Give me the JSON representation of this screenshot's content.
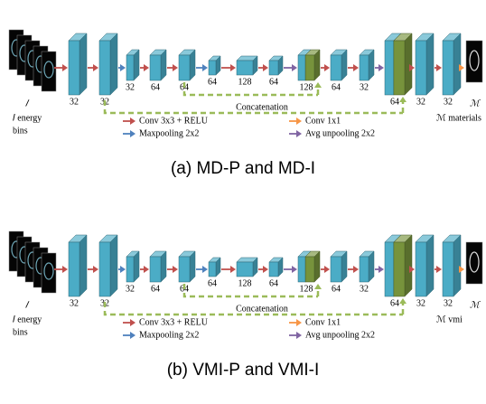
{
  "panels": [
    {
      "caption": "(a) MD-P and MD-I",
      "input_symbol": "𝐼",
      "input_caption": [
        "𝐼 energy",
        "bins"
      ],
      "output_symbol": "ℳ",
      "output_caption": "ℳ materials",
      "channels": [
        "32",
        "32",
        "32",
        "64",
        "64",
        "64",
        "128",
        "64",
        "128",
        "64",
        "32",
        "64",
        "32",
        "32"
      ],
      "concatenation": "Concatenation",
      "legend": [
        {
          "label": "Conv 3x3 + RELU",
          "color": "#c0504d"
        },
        {
          "label": "Maxpooling 2x2",
          "color": "#4f81bd"
        },
        {
          "label": "Conv 1x1",
          "color": "#f79646"
        },
        {
          "label": "Avg unpooling 2x2",
          "color": "#8064a2"
        }
      ]
    },
    {
      "caption": "(b) VMI-P and VMI-I",
      "input_symbol": "𝐼",
      "input_caption": [
        "𝐼 energy",
        "bins"
      ],
      "output_symbol": "ℳ",
      "output_caption": "ℳ vmi",
      "channels": [
        "32",
        "32",
        "32",
        "64",
        "64",
        "64",
        "128",
        "64",
        "128",
        "64",
        "32",
        "64",
        "32",
        "32"
      ],
      "concatenation": "Concatenation",
      "legend": [
        {
          "label": "Conv 3x3 + RELU",
          "color": "#c0504d"
        },
        {
          "label": "Maxpooling 2x2",
          "color": "#4f81bd"
        },
        {
          "label": "Conv 1x1",
          "color": "#f79646"
        },
        {
          "label": "Avg unpooling 2x2",
          "color": "#8064a2"
        }
      ]
    }
  ]
}
